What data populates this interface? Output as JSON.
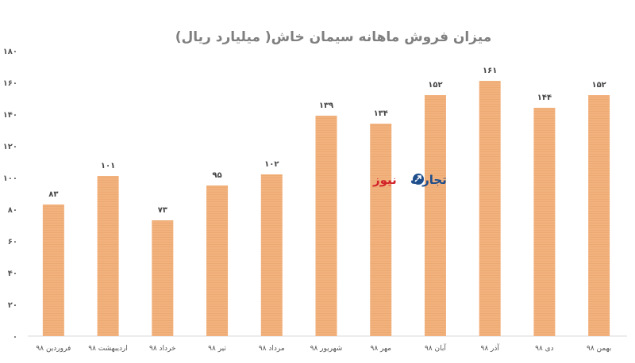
{
  "chart_data": {
    "type": "bar",
    "title": "میزان فروش ماهانه سیمان خاش( میلیارد ریال)",
    "categories": [
      "فروردین ۹۸",
      "اردیبهشت ۹۸",
      "خرداد ۹۸",
      "تیر ۹۸",
      "مرداد ۹۸",
      "شهریور ۹۸",
      "مهر ۹۸",
      "آبان ۹۸",
      "آذر ۹۸",
      "دی ۹۸",
      "بهمن ۹۸"
    ],
    "values": [
      83,
      101,
      73,
      95,
      102,
      139,
      134,
      152,
      161,
      144,
      152
    ],
    "value_labels": [
      "۸۳",
      "۱۰۱",
      "۷۳",
      "۹۵",
      "۱۰۲",
      "۱۳۹",
      "۱۳۴",
      "۱۵۲",
      "۱۶۱",
      "۱۴۴",
      "۱۵۲"
    ],
    "ylim": [
      0,
      180
    ],
    "yticks": [
      0,
      20,
      40,
      60,
      80,
      100,
      120,
      140,
      160,
      180
    ],
    "ytick_labels": [
      "۰",
      "۲۰",
      "۴۰",
      "۶۰",
      "۸۰",
      "۱۰۰",
      "۱۲۰",
      "۱۴۰",
      "۱۶۰",
      "۱۸۰"
    ],
    "xlabel": "",
    "ylabel": "",
    "grid": false,
    "bar_color": "#F2B27E",
    "bar_stripe_color": "#E79E63"
  },
  "watermark": {
    "text_part1": "تجارت",
    "text_part2": "نیوز",
    "color1": "#1f4e8c",
    "color2": "#d2232a"
  }
}
